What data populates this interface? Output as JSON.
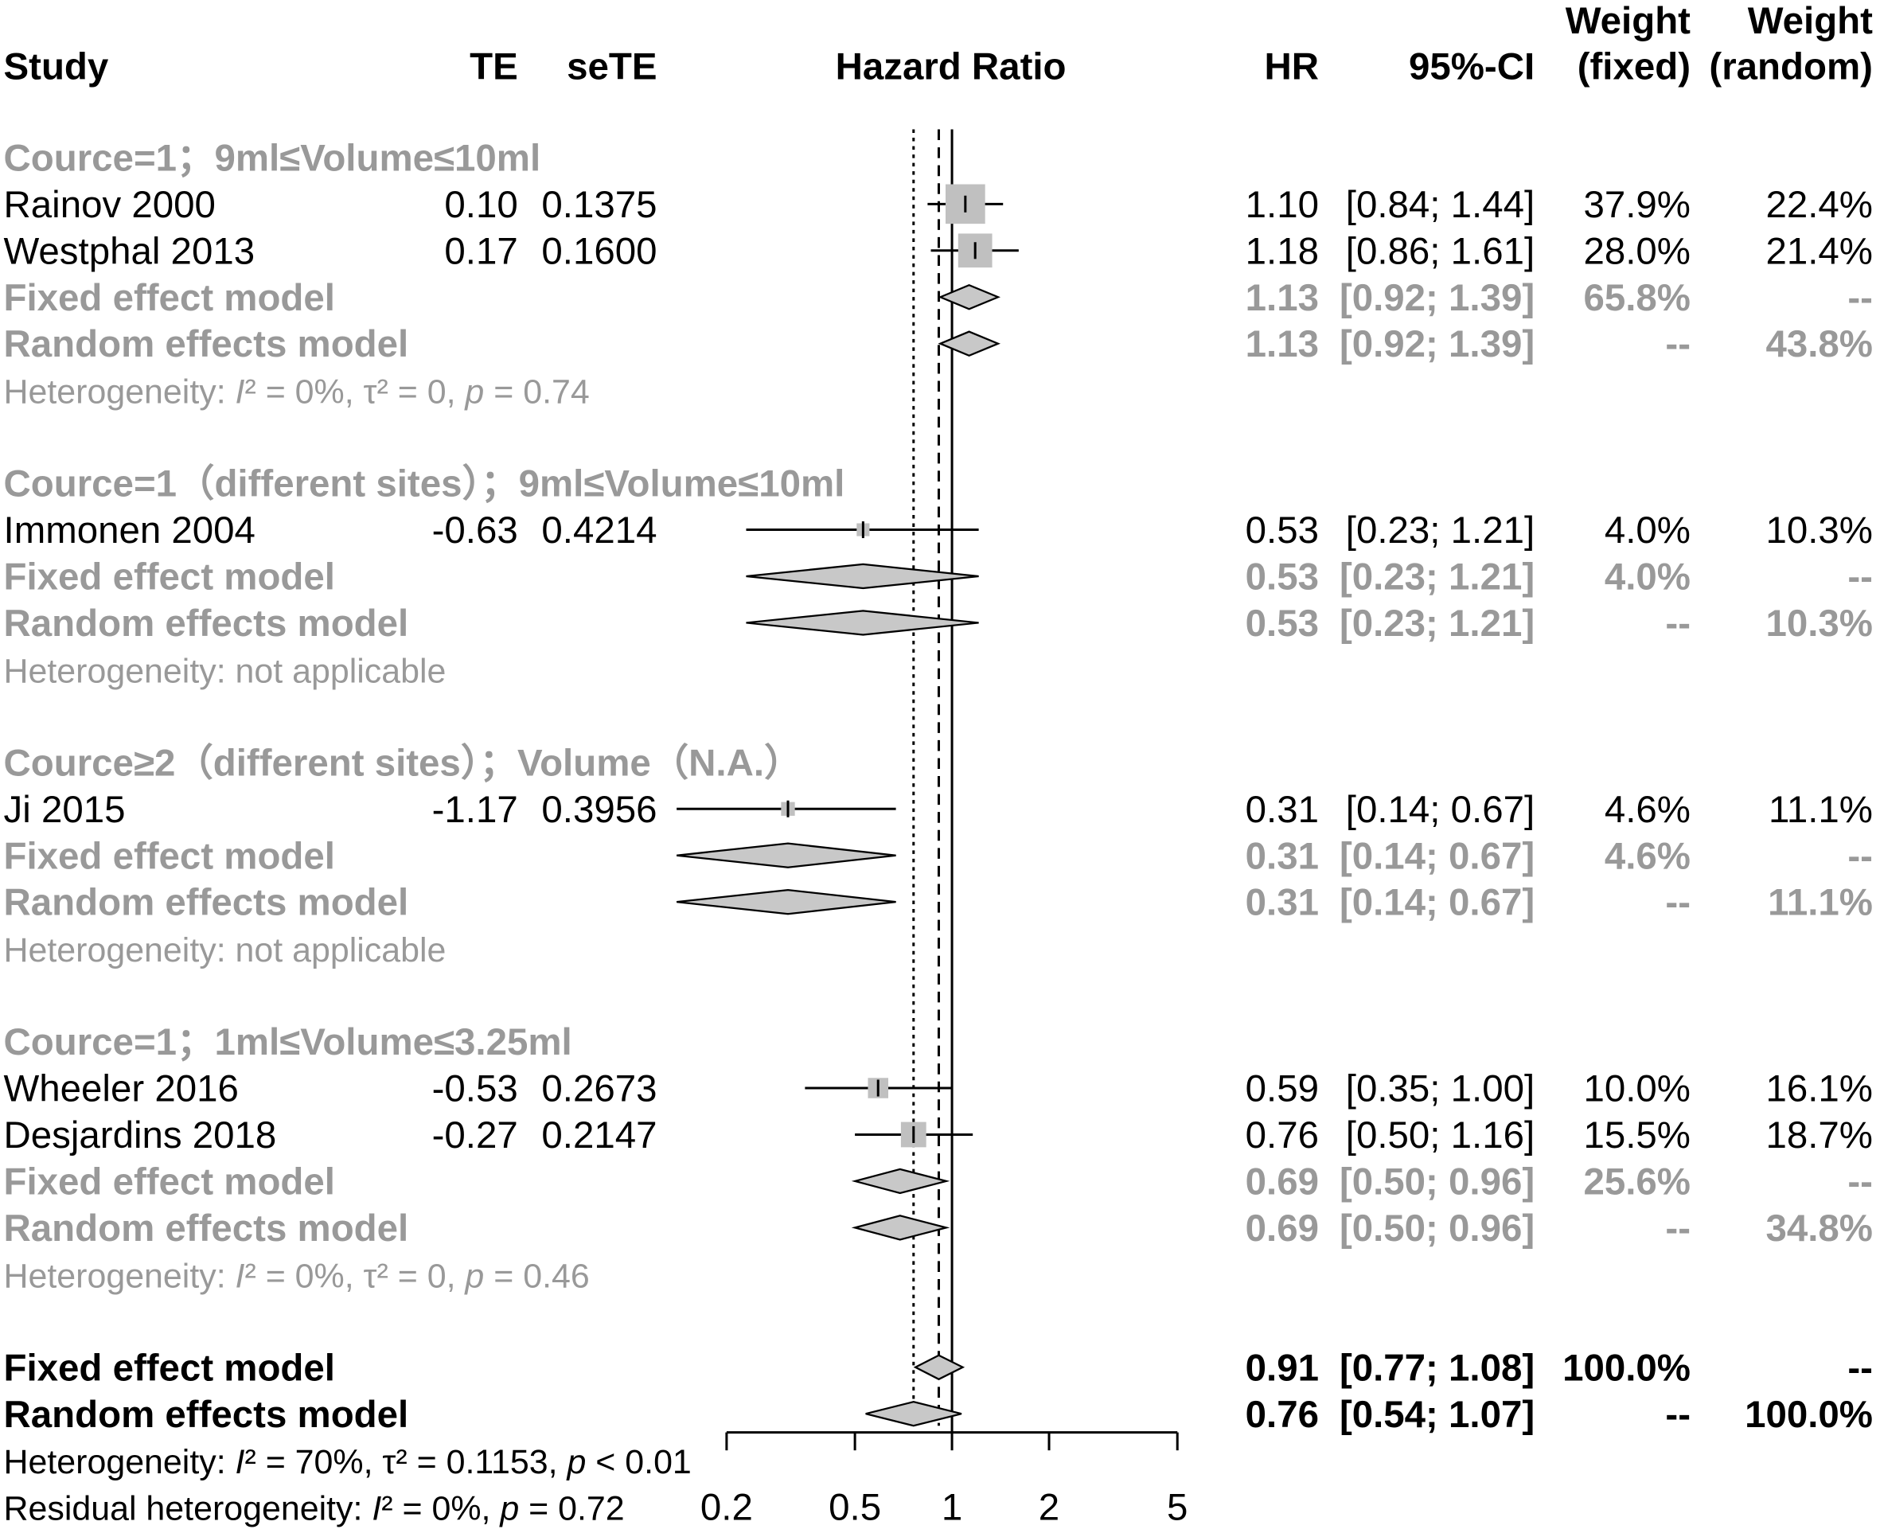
{
  "chart_data": {
    "type": "scatter",
    "columns": {
      "study": "Study",
      "te": "TE",
      "sete": "seTE",
      "plot": "Hazard Ratio",
      "hr": "HR",
      "ci": "95%-CI",
      "weight_fixed": [
        "Weight",
        "(fixed)"
      ],
      "weight_random": [
        "Weight",
        "(random)"
      ]
    },
    "xticks": [
      0.2,
      0.5,
      1,
      2,
      5
    ],
    "xlim": [
      0.2,
      5
    ],
    "null_value": 1,
    "subgroups": [
      {
        "label": "Cource=1；9ml≤Volume≤10ml",
        "studies": [
          {
            "name": "Rainov 2000",
            "te": "0.10",
            "sete": "0.1375",
            "hr": "1.10",
            "ci": "[0.84; 1.44]",
            "weight_fixed": "37.9%",
            "weight_random": "22.4%"
          },
          {
            "name": "Westphal 2013",
            "te": "0.17",
            "sete": "0.1600",
            "hr": "1.18",
            "ci": "[0.86; 1.61]",
            "weight_fixed": "28.0%",
            "weight_random": "21.4%"
          }
        ],
        "fixed": {
          "label": "Fixed effect model",
          "hr": "1.13",
          "ci": "[0.92; 1.39]",
          "weight_fixed": "65.8%",
          "weight_random": "--"
        },
        "random": {
          "label": "Random effects model",
          "hr": "1.13",
          "ci": "[0.92; 1.39]",
          "weight_fixed": "--",
          "weight_random": "43.8%"
        },
        "heterogeneity": [
          {
            "t": "Heterogeneity: "
          },
          {
            "t": "I",
            "i": true
          },
          {
            "t": "² = 0%, τ² = 0, "
          },
          {
            "t": "p",
            "i": true
          },
          {
            "t": " = 0.74"
          }
        ]
      },
      {
        "label": "Cource=1（different sites）；9ml≤Volume≤10ml",
        "studies": [
          {
            "name": "Immonen 2004",
            "te": "-0.63",
            "sete": "0.4214",
            "hr": "0.53",
            "ci": "[0.23; 1.21]",
            "weight_fixed": "4.0%",
            "weight_random": "10.3%"
          }
        ],
        "fixed": {
          "label": "Fixed effect model",
          "hr": "0.53",
          "ci": "[0.23; 1.21]",
          "weight_fixed": "4.0%",
          "weight_random": "--"
        },
        "random": {
          "label": "Random effects model",
          "hr": "0.53",
          "ci": "[0.23; 1.21]",
          "weight_fixed": "--",
          "weight_random": "10.3%"
        },
        "heterogeneity": [
          {
            "t": "Heterogeneity: not applicable"
          }
        ]
      },
      {
        "label": "Cource≥2（different sites）；Volume（N.A.）",
        "studies": [
          {
            "name": "Ji 2015",
            "te": "-1.17",
            "sete": "0.3956",
            "hr": "0.31",
            "ci": "[0.14; 0.67]",
            "weight_fixed": "4.6%",
            "weight_random": "11.1%"
          }
        ],
        "fixed": {
          "label": "Fixed effect model",
          "hr": "0.31",
          "ci": "[0.14; 0.67]",
          "weight_fixed": "4.6%",
          "weight_random": "--"
        },
        "random": {
          "label": "Random effects model",
          "hr": "0.31",
          "ci": "[0.14; 0.67]",
          "weight_fixed": "--",
          "weight_random": "11.1%"
        },
        "heterogeneity": [
          {
            "t": "Heterogeneity: not applicable"
          }
        ]
      },
      {
        "label": "Cource=1；1ml≤Volume≤3.25ml",
        "studies": [
          {
            "name": "Wheeler 2016",
            "te": "-0.53",
            "sete": "0.2673",
            "hr": "0.59",
            "ci": "[0.35; 1.00]",
            "weight_fixed": "10.0%",
            "weight_random": "16.1%"
          },
          {
            "name": "Desjardins 2018",
            "te": "-0.27",
            "sete": "0.2147",
            "hr": "0.76",
            "ci": "[0.50; 1.16]",
            "weight_fixed": "15.5%",
            "weight_random": "18.7%"
          }
        ],
        "fixed": {
          "label": "Fixed effect model",
          "hr": "0.69",
          "ci": "[0.50; 0.96]",
          "weight_fixed": "25.6%",
          "weight_random": "--"
        },
        "random": {
          "label": "Random effects model",
          "hr": "0.69",
          "ci": "[0.50; 0.96]",
          "weight_fixed": "--",
          "weight_random": "34.8%"
        },
        "heterogeneity": [
          {
            "t": "Heterogeneity: "
          },
          {
            "t": "I",
            "i": true
          },
          {
            "t": "² = 0%, τ² = 0, "
          },
          {
            "t": "p",
            "i": true
          },
          {
            "t": " = 0.46"
          }
        ]
      }
    ],
    "overall": {
      "fixed": {
        "label": "Fixed effect model",
        "hr": "0.91",
        "ci": "[0.77; 1.08]",
        "weight_fixed": "100.0%",
        "weight_random": "--"
      },
      "random": {
        "label": "Random effects model",
        "hr": "0.76",
        "ci": "[0.54; 1.07]",
        "weight_fixed": "--",
        "weight_random": "100.0%"
      },
      "heterogeneity": [
        {
          "t": "Heterogeneity: "
        },
        {
          "t": "I",
          "i": true
        },
        {
          "t": "² = 70%, τ² = 0.1153, "
        },
        {
          "t": "p",
          "i": true
        },
        {
          "t": " < 0.01"
        }
      ],
      "residual_heterogeneity": [
        {
          "t": "Residual heterogeneity: "
        },
        {
          "t": "I",
          "i": true
        },
        {
          "t": "² = 0%, "
        },
        {
          "t": "p",
          "i": true
        },
        {
          "t": " = 0.72"
        }
      ]
    }
  },
  "colors": {
    "text": "#000000",
    "subgroup_text": "#999999",
    "square_fill": "#c0c0c0",
    "diamond_fill": "#c8c8c8",
    "lines": "#000000"
  }
}
